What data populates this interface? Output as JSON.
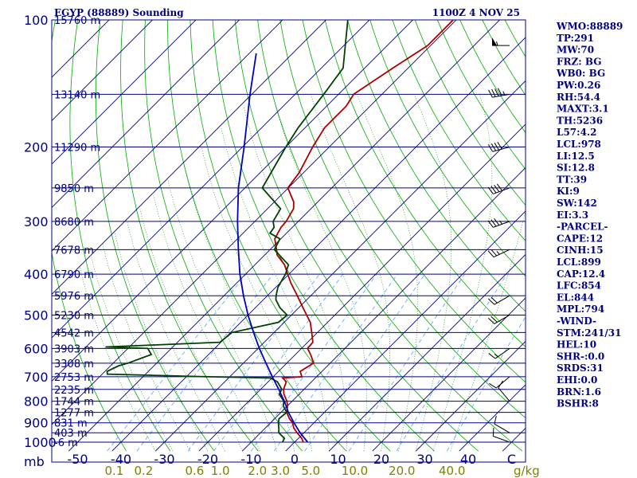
{
  "header": {
    "title": "EGYP (88889) Sounding",
    "datetime": "1100Z  4 NOV 25"
  },
  "indices": [
    "WMO:88889",
    "TP:291",
    "MW:70",
    "FRZ: BG",
    "WB0: BG",
    "PW:0.26",
    "RH:54.4",
    "MAXT:3.1",
    "TH:5236",
    "L57:4.2",
    "LCL:978",
    "LI:12.5",
    "SI:12.8",
    "TT:39",
    "KI:9",
    "SW:142",
    "EI:3.3",
    "-PARCEL-",
    "CAPE:12",
    "CINH:15",
    "LCL:899",
    "CAP:12.4",
    "LFC:854",
    "EL:844",
    "MPL:794",
    "-WIND-",
    "STM:241/31",
    "HEL:10",
    "SHR-:0.0",
    "SRDS:31",
    "EHI:0.0",
    "BRN:1.6",
    "BSHR:8"
  ],
  "colors": {
    "frame": "#000080",
    "isobar": "#000080",
    "isotherm": "#000080",
    "dry_adiabat": "#00aa00",
    "moist_adiabat": "#008000",
    "mixing_ratio": "#999999",
    "dewpoint_helper": "#66aaff",
    "temperature": "#aa0000",
    "dewpoint": "#004000",
    "parcel": "#0000c0",
    "mixing_label": "#808000"
  },
  "chart_data": {
    "type": "line",
    "title": "EGYP (88889) Sounding",
    "xlabel": "°C",
    "ylabel": "mb",
    "y_scale": "log",
    "skewed": true,
    "xlim": [
      -50,
      50
    ],
    "ylim": [
      1000,
      100
    ],
    "pressure_ticks": [
      100,
      200,
      300,
      400,
      500,
      600,
      700,
      800,
      900,
      1000
    ],
    "temperature_ticks": [
      -50,
      -40,
      -30,
      -20,
      -10,
      0,
      10,
      20,
      30,
      40,
      50
    ],
    "temperature_tick_labels": [
      "-50",
      "-40",
      "-30",
      "-20",
      "-10",
      "0",
      "10",
      "20",
      "30",
      "40",
      "C"
    ],
    "pressure_axis_unit": "mb",
    "height_levels": [
      {
        "p": 100,
        "label": "15760 m"
      },
      {
        "p": 150,
        "label": "13140 m"
      },
      {
        "p": 200,
        "label": "11290 m"
      },
      {
        "p": 250,
        "label": "9850 m"
      },
      {
        "p": 300,
        "label": "8680 m"
      },
      {
        "p": 350,
        "label": "7678 m"
      },
      {
        "p": 400,
        "label": "6790 m"
      },
      {
        "p": 450,
        "label": "5976 m"
      },
      {
        "p": 500,
        "label": "5230 m"
      },
      {
        "p": 550,
        "label": "4542 m"
      },
      {
        "p": 600,
        "label": "3903 m"
      },
      {
        "p": 650,
        "label": "3308 m"
      },
      {
        "p": 700,
        "label": "2753 m"
      },
      {
        "p": 750,
        "label": "2235 m"
      },
      {
        "p": 800,
        "label": "1744 m"
      },
      {
        "p": 850,
        "label": "1277 m"
      },
      {
        "p": 900,
        "label": "831 m"
      },
      {
        "p": 950,
        "label": "403 m"
      },
      {
        "p": 1000,
        "label": "-6 m"
      }
    ],
    "mixing_ratio_labels": [
      {
        "w": 0.1,
        "label": "0.1"
      },
      {
        "w": 0.2,
        "label": "0.2"
      },
      {
        "w": 0.6,
        "label": "0.6"
      },
      {
        "w": 1.0,
        "label": "1.0"
      },
      {
        "w": 2.0,
        "label": "2.0"
      },
      {
        "w": 3.0,
        "label": "3.0"
      },
      {
        "w": 5.0,
        "label": "5.0"
      },
      {
        "w": 10.0,
        "label": "10.0"
      },
      {
        "w": 20.0,
        "label": "20.0"
      },
      {
        "w": 40.0,
        "label": "40.0"
      }
    ],
    "mixing_ratio_unit": "g/kg",
    "series": [
      {
        "name": "Temperature",
        "p": [
          1000,
          980,
          950,
          925,
          900,
          880,
          850,
          820,
          800,
          770,
          750,
          720,
          705,
          700,
          680,
          650,
          620,
          600,
          580,
          550,
          520,
          500,
          470,
          450,
          420,
          400,
          380,
          360,
          350,
          330,
          320,
          310,
          300,
          280,
          270,
          250,
          230,
          200,
          180,
          160,
          150,
          130,
          115,
          100
        ],
        "t": [
          2.0,
          0.8,
          -1.6,
          -3.5,
          -4.9,
          -6.6,
          -8.7,
          -10.0,
          -11.2,
          -13.5,
          -14.7,
          -15.8,
          -17.5,
          -13.4,
          -15.0,
          -13.8,
          -16.5,
          -18.6,
          -18.8,
          -21.3,
          -24.0,
          -26.5,
          -30.4,
          -33.1,
          -37.5,
          -40.3,
          -43.2,
          -47.2,
          -48.5,
          -51.4,
          -52.0,
          -52.6,
          -52.8,
          -54.0,
          -55.5,
          -60.1,
          -61.0,
          -63.8,
          -65.5,
          -65.5,
          -66.5,
          -63.5,
          -60.7,
          -60.7
        ]
      },
      {
        "name": "Dewpoint",
        "p": [
          1000,
          980,
          950,
          930,
          900,
          880,
          850,
          820,
          800,
          770,
          750,
          720,
          705,
          700,
          690,
          680,
          660,
          650,
          620,
          600,
          595,
          580,
          550,
          520,
          500,
          480,
          460,
          450,
          430,
          400,
          380,
          350,
          330,
          320,
          310,
          300,
          280,
          250,
          220,
          200,
          180,
          150,
          130,
          100
        ],
        "t": [
          -2.8,
          -3.2,
          -5.8,
          -6.7,
          -8.2,
          -9.0,
          -8.7,
          -11.0,
          -11.9,
          -14.6,
          -15.1,
          -17.8,
          -20.3,
          -35.0,
          -58.8,
          -59.5,
          -58.2,
          -56.6,
          -53.2,
          -55.4,
          -65.5,
          -40.2,
          -39.7,
          -31.3,
          -31.0,
          -34.4,
          -37.1,
          -38.0,
          -39.5,
          -40.8,
          -42.3,
          -49.0,
          -50.2,
          -53.8,
          -54.2,
          -55.8,
          -57.0,
          -66.0,
          -68.3,
          -70.0,
          -71.6,
          -73.4,
          -75.0,
          -85.0
        ]
      },
      {
        "name": "Parcel",
        "p": [
          1000,
          950,
          900,
          850,
          800,
          750,
          700,
          650,
          600,
          550,
          500,
          450,
          400,
          350,
          300,
          250,
          200,
          150,
          120
        ],
        "t": [
          3.0,
          -0.9,
          -4.6,
          -8.3,
          -11.8,
          -15.8,
          -20.2,
          -24.8,
          -29.7,
          -34.7,
          -40.0,
          -45.5,
          -51.3,
          -57.3,
          -64.0,
          -71.5,
          -79.6,
          -90.4,
          -98.4
        ]
      }
    ],
    "wind_barbs": [
      {
        "p": 115,
        "dir": 270,
        "speed_kt": 55
      },
      {
        "p": 150,
        "dir": 260,
        "speed_kt": 45
      },
      {
        "p": 200,
        "dir": 255,
        "speed_kt": 40
      },
      {
        "p": 250,
        "dir": 250,
        "speed_kt": 40
      },
      {
        "p": 300,
        "dir": 250,
        "speed_kt": 35
      },
      {
        "p": 350,
        "dir": 245,
        "speed_kt": 25
      },
      {
        "p": 450,
        "dir": 240,
        "speed_kt": 20
      },
      {
        "p": 500,
        "dir": 240,
        "speed_kt": 20
      },
      {
        "p": 600,
        "dir": 235,
        "speed_kt": 15
      },
      {
        "p": 700,
        "dir": 230,
        "speed_kt": 10
      },
      {
        "p": 800,
        "dir": 320,
        "speed_kt": 10
      },
      {
        "p": 950,
        "dir": 300,
        "speed_kt": 10
      },
      {
        "p": 1000,
        "dir": 290,
        "speed_kt": 10
      }
    ]
  }
}
